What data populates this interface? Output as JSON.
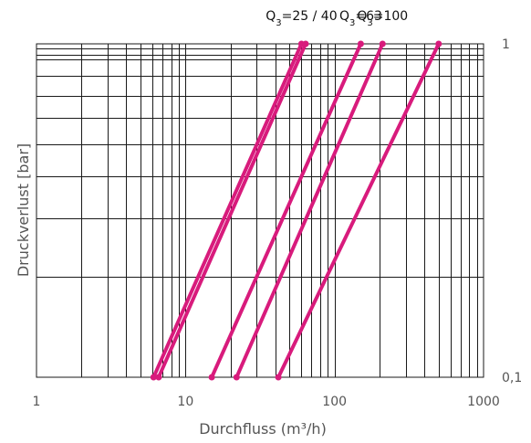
{
  "chart_data": {
    "type": "line",
    "xlabel": "Durchfluss (m³/h)",
    "ylabel": "Druckverlust [bar]",
    "x_scale": "log",
    "y_scale": "log",
    "xlim": [
      1,
      1000
    ],
    "ylim": [
      0.1,
      1
    ],
    "x_ticks": [
      {
        "value": 1,
        "label": "1"
      },
      {
        "value": 10,
        "label": "10"
      },
      {
        "value": 100,
        "label": "100"
      },
      {
        "value": 1000,
        "label": "1000"
      }
    ],
    "y_ticks": [
      {
        "value": 1,
        "label": "1"
      },
      {
        "value": 0.1,
        "label": "0,1"
      }
    ],
    "grid": true,
    "line_color": "#d81b7c",
    "series_labels": [
      {
        "id": "q25-40",
        "parts": [
          "Q",
          "3",
          "=25 / 40"
        ],
        "anchor_x": 60
      },
      {
        "id": "q63",
        "parts": [
          "Q",
          "3",
          "=63"
        ],
        "anchor_x": 150
      },
      {
        "id": "q100",
        "parts": [
          "Q",
          "3",
          "=100"
        ],
        "anchor_x": 210
      }
    ],
    "series": [
      {
        "points": [
          {
            "x": 6.1,
            "y": 0.1
          },
          {
            "x": 60,
            "y": 1
          }
        ]
      },
      {
        "points": [
          {
            "x": 6.6,
            "y": 0.1
          },
          {
            "x": 64,
            "y": 1
          }
        ]
      },
      {
        "points": [
          {
            "x": 15,
            "y": 0.1
          },
          {
            "x": 150,
            "y": 1
          }
        ]
      },
      {
        "points": [
          {
            "x": 22,
            "y": 0.1
          },
          {
            "x": 210,
            "y": 1
          }
        ]
      },
      {
        "points": [
          {
            "x": 42,
            "y": 0.1
          },
          {
            "x": 500,
            "y": 1
          }
        ]
      }
    ]
  }
}
